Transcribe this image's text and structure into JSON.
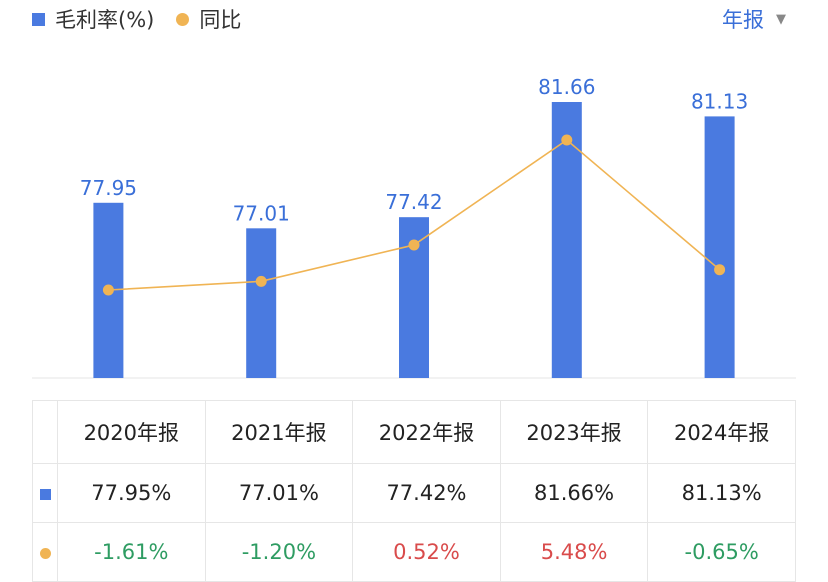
{
  "legend": {
    "bar_label": "毛利率(%)",
    "line_label": "同比"
  },
  "period_selector": {
    "label": "年报"
  },
  "colors": {
    "bar": "#4a7ae0",
    "line": "#f0b454",
    "positive": "#d94b4b",
    "negative": "#2e9c62",
    "header_text": "#222222"
  },
  "chart_data": {
    "type": "bar",
    "categories": [
      "2020年报",
      "2021年报",
      "2022年报",
      "2023年报",
      "2024年报"
    ],
    "series": [
      {
        "name": "毛利率(%)",
        "type": "bar",
        "values": [
          77.95,
          77.01,
          77.42,
          81.66,
          81.13
        ],
        "labels": [
          "77.95",
          "77.01",
          "77.42",
          "81.66",
          "81.13"
        ]
      },
      {
        "name": "同比",
        "type": "line",
        "values": [
          -1.61,
          -1.2,
          0.52,
          5.48,
          -0.65
        ]
      }
    ],
    "grid": false,
    "legend_position": "top-left"
  },
  "table": {
    "headers": [
      "2020年报",
      "2021年报",
      "2022年报",
      "2023年报",
      "2024年报"
    ],
    "rows": [
      {
        "marker": "bar",
        "cells": [
          "77.95%",
          "77.01%",
          "77.42%",
          "81.66%",
          "81.13%"
        ]
      },
      {
        "marker": "line",
        "cells": [
          "-1.61%",
          "-1.20%",
          "0.52%",
          "5.48%",
          "-0.65%"
        ]
      }
    ]
  }
}
